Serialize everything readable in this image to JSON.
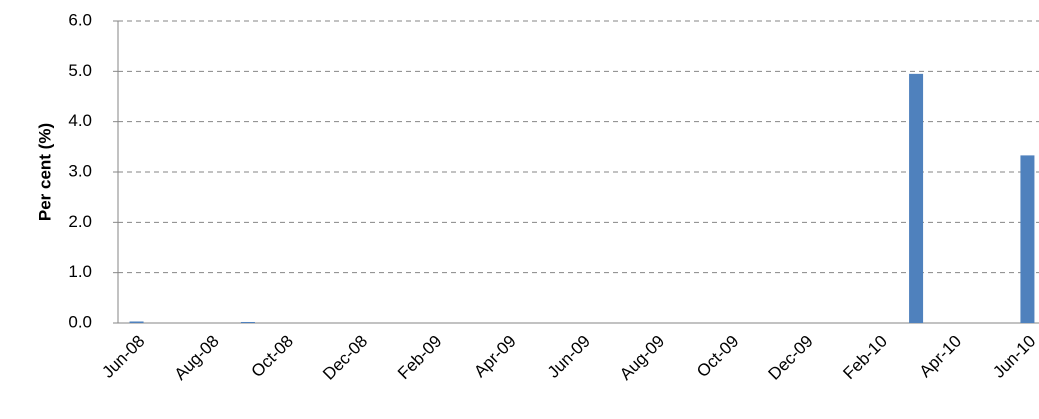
{
  "chart_data": {
    "type": "bar",
    "y_label": "Per cent (%)",
    "categories": [
      "Jun-08",
      null,
      "Aug-08",
      null,
      "Oct-08",
      null,
      "Dec-08",
      null,
      "Feb-09",
      null,
      "Apr-09",
      null,
      "Jun-09",
      null,
      "Aug-09",
      null,
      "Oct-09",
      null,
      "Dec-09",
      null,
      "Feb-10",
      null,
      "Apr-10",
      null,
      "Jun-10"
    ],
    "values": [
      0.03,
      0,
      0,
      0.02,
      0,
      0,
      0,
      0,
      0,
      0,
      0,
      0,
      0,
      0,
      0,
      0,
      0,
      0,
      0,
      0,
      0,
      4.95,
      0,
      0,
      3.33
    ],
    "value_labels": null,
    "color": "#4f81bd",
    "ylim": [
      0,
      6
    ],
    "yticks": [
      {
        "value": 0,
        "label": "0.0"
      },
      {
        "value": 1,
        "label": "1.0"
      },
      {
        "value": 2,
        "label": "2.0"
      },
      {
        "value": 3,
        "label": "3.0"
      },
      {
        "value": 4,
        "label": "4.0"
      },
      {
        "value": 5,
        "label": "5.0"
      },
      {
        "value": 6,
        "label": "6.0"
      }
    ],
    "grid": true
  }
}
